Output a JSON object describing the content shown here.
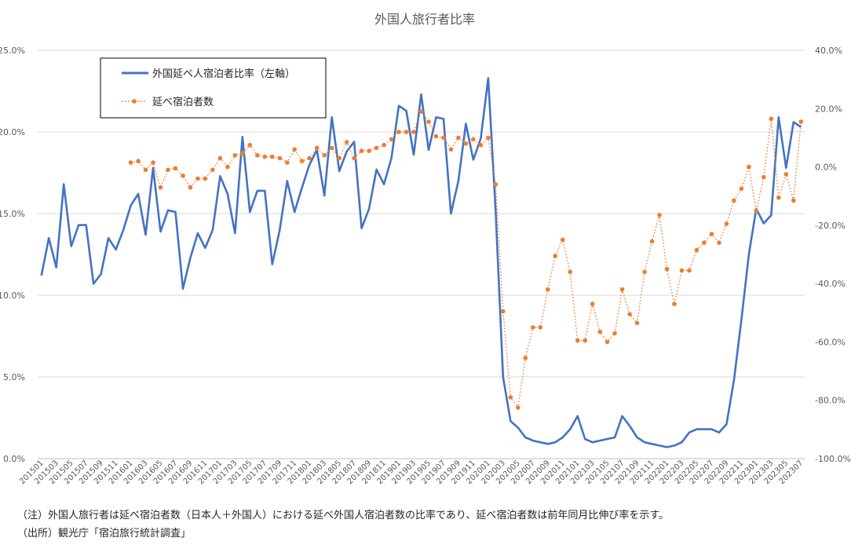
{
  "chart_data": {
    "type": "line",
    "title": "外国人旅行者比率",
    "x": [
      "201501",
      "201502",
      "201503",
      "201504",
      "201505",
      "201506",
      "201507",
      "201508",
      "201509",
      "201510",
      "201511",
      "201512",
      "201601",
      "201602",
      "201603",
      "201604",
      "201605",
      "201606",
      "201607",
      "201608",
      "201609",
      "201610",
      "201611",
      "201612",
      "201701",
      "201702",
      "201703",
      "201704",
      "201705",
      "201706",
      "201707",
      "201708",
      "201709",
      "201710",
      "201711",
      "201712",
      "201801",
      "201802",
      "201803",
      "201804",
      "201805",
      "201806",
      "201807",
      "201808",
      "201809",
      "201810",
      "201811",
      "201812",
      "201901",
      "201902",
      "201903",
      "201904",
      "201905",
      "201906",
      "201907",
      "201908",
      "201909",
      "201910",
      "201911",
      "201912",
      "202001",
      "202002",
      "202003",
      "202004",
      "202005",
      "202006",
      "202007",
      "202008",
      "202009",
      "202010",
      "202011",
      "202012",
      "202101",
      "202102",
      "202103",
      "202104",
      "202105",
      "202106",
      "202107",
      "202108",
      "202109",
      "202110",
      "202111",
      "202112",
      "202201",
      "202202",
      "202203",
      "202204",
      "202205",
      "202206",
      "202207",
      "202208",
      "202209",
      "202210",
      "202211",
      "202212",
      "202301",
      "202302",
      "202303",
      "202304",
      "202305",
      "202306",
      "202307"
    ],
    "x_ticks": [
      "201501",
      "201503",
      "201505",
      "201507",
      "201509",
      "201511",
      "201601",
      "201603",
      "201605",
      "201607",
      "201609",
      "201611",
      "201701",
      "201703",
      "201705",
      "201707",
      "201709",
      "201711",
      "201801",
      "201803",
      "201805",
      "201807",
      "201809",
      "201811",
      "201901",
      "201903",
      "201905",
      "201907",
      "201909",
      "201911",
      "202001",
      "202003",
      "202005",
      "202007",
      "202009",
      "202011",
      "202101",
      "202103",
      "202105",
      "202107",
      "202109",
      "202111",
      "202201",
      "202203",
      "202205",
      "202207",
      "202209",
      "202211",
      "202301",
      "202303",
      "202305",
      "202307"
    ],
    "y_left": {
      "ticks": [
        "0.0%",
        "5.0%",
        "10.0%",
        "15.0%",
        "20.0%",
        "25.0%"
      ],
      "range": [
        0,
        25
      ]
    },
    "y_right": {
      "ticks": [
        "-100.0%",
        "-80.0%",
        "-60.0%",
        "-40.0%",
        "-20.0%",
        "0.0%",
        "20.0%",
        "40.0%"
      ],
      "range": [
        -100,
        40
      ]
    },
    "series": [
      {
        "name": "外国延べ人宿泊者比率（左軸）",
        "axis": "left",
        "color": "#4472C4",
        "style": "solid",
        "values": [
          11.2,
          13.5,
          11.7,
          16.8,
          13.0,
          14.3,
          14.3,
          10.7,
          11.3,
          13.5,
          12.8,
          14.0,
          15.5,
          16.2,
          13.7,
          17.8,
          13.9,
          15.2,
          15.1,
          10.4,
          12.3,
          13.8,
          12.9,
          14.0,
          17.3,
          16.2,
          13.8,
          19.7,
          15.1,
          16.4,
          16.4,
          11.9,
          14.0,
          17.0,
          15.1,
          16.6,
          18.0,
          18.9,
          16.1,
          20.9,
          17.6,
          18.8,
          19.4,
          14.1,
          15.3,
          17.7,
          16.8,
          18.4,
          21.6,
          21.3,
          18.6,
          22.3,
          18.9,
          20.9,
          20.8,
          15.0,
          17.0,
          20.5,
          18.3,
          19.6,
          23.3,
          15.1,
          5.0,
          2.3,
          1.9,
          1.3,
          1.1,
          1.0,
          0.9,
          1.0,
          1.3,
          1.8,
          2.6,
          1.2,
          1.0,
          1.1,
          1.2,
          1.3,
          2.6,
          2.0,
          1.3,
          1.0,
          0.9,
          0.8,
          0.7,
          0.8,
          1.0,
          1.6,
          1.8,
          1.8,
          1.8,
          1.6,
          2.1,
          4.8,
          8.5,
          12.5,
          15.3,
          14.4,
          14.9,
          20.9,
          17.8,
          20.6,
          20.3
        ]
      },
      {
        "name": "延べ宿泊者数",
        "axis": "right",
        "color": "#ED7D31",
        "style": "dotted",
        "values": [
          null,
          null,
          null,
          null,
          null,
          null,
          null,
          null,
          null,
          null,
          null,
          null,
          1.5,
          2.0,
          -1.0,
          1.5,
          -7.0,
          -1.0,
          -0.5,
          -3.0,
          -7.0,
          -4.0,
          -4.0,
          -1.0,
          3.0,
          0.0,
          4.0,
          4.5,
          7.5,
          4.0,
          3.5,
          3.5,
          3.0,
          1.5,
          6.0,
          2.0,
          3.0,
          6.5,
          4.0,
          6.5,
          3.0,
          8.5,
          3.0,
          5.5,
          5.5,
          6.5,
          7.5,
          9.5,
          12.0,
          12.0,
          12.0,
          19.0,
          15.5,
          10.5,
          10.0,
          6.0,
          10.0,
          8.0,
          9.5,
          7.5,
          10.0,
          -6.0,
          -49.5,
          -79.0,
          -82.5,
          -65.5,
          -55.0,
          -55.0,
          -42.0,
          -30.5,
          -25.0,
          -36.0,
          -59.5,
          -59.5,
          -47.0,
          -56.5,
          -60.0,
          -57.0,
          -42.0,
          -50.5,
          -53.5,
          -36.0,
          -25.5,
          -16.5,
          -35.0,
          -47.0,
          -35.5,
          -35.5,
          -28.5,
          -26.0,
          -23.0,
          -26.0,
          -19.5,
          -11.5,
          -7.5,
          0.0,
          -15.0,
          -3.5,
          16.5,
          -10.5,
          -2.5,
          -11.5,
          15.5
        ]
      }
    ],
    "legend": "top-left",
    "grid": true
  },
  "notes": {
    "line1": "（注）外国人旅行者は延べ宿泊者数（日本人＋外国人）における延べ外国人宿泊者数の比率であり、延べ宿泊者数は前年同月比伸び率を示す。",
    "line2": "（出所）観光庁「宿泊旅行統計調査」"
  }
}
